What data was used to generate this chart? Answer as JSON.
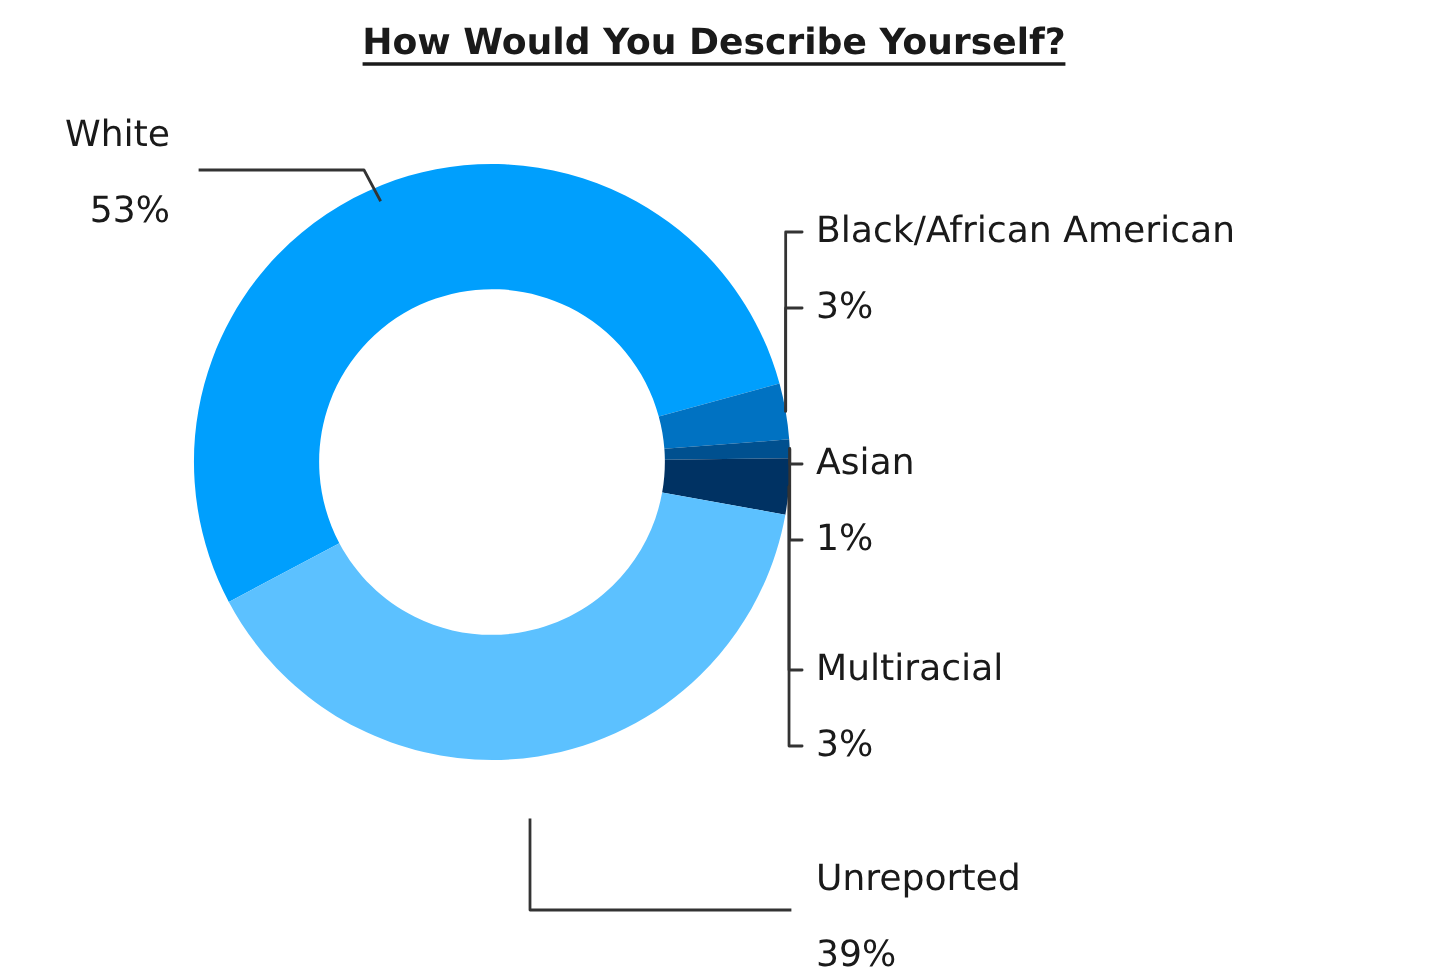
{
  "chart_data": {
    "type": "donut",
    "title": "How Would You Describe Yourself?",
    "categories": [
      "White",
      "Black/African American",
      "Asian",
      "Multiracial",
      "Unreported"
    ],
    "values": [
      53,
      3,
      1,
      3,
      39
    ],
    "colors": [
      "#009ffd",
      "#0072c2",
      "#00508f",
      "#003263",
      "#5cc1ff"
    ],
    "value_labels": [
      "53%",
      "3%",
      "1%",
      "3%",
      "39%"
    ]
  }
}
